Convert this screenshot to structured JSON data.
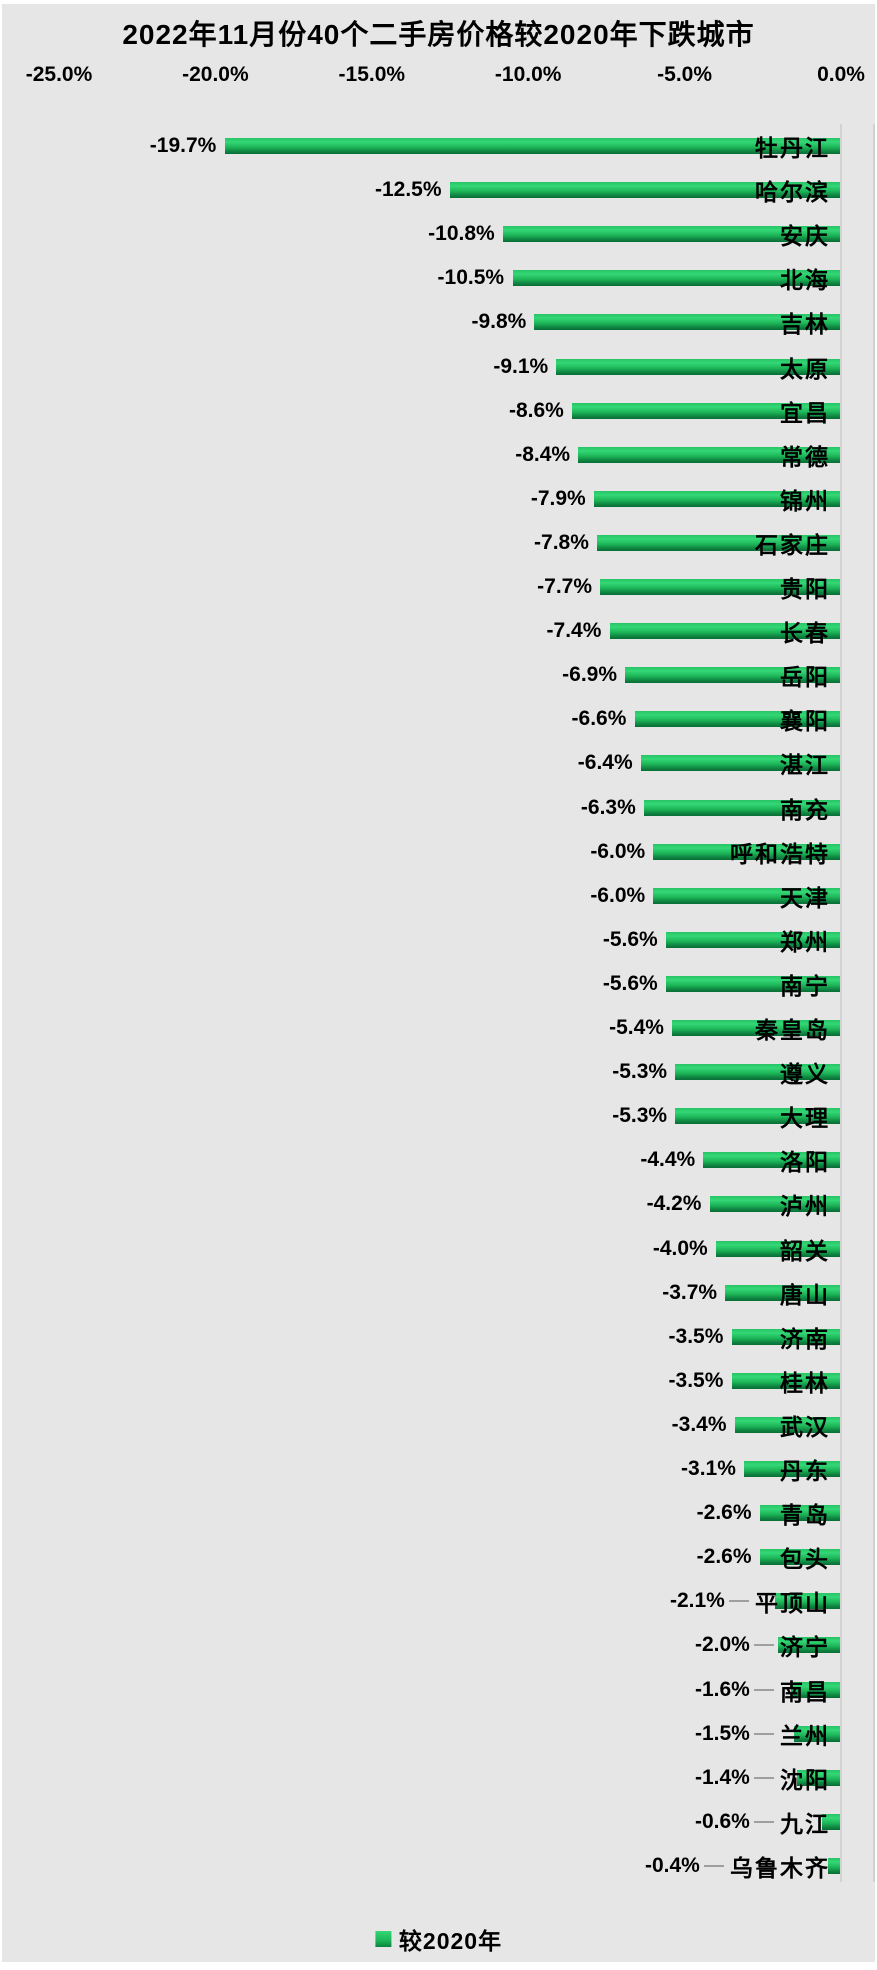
{
  "title": "2022年11月份40个二手房价格较2020年下跌城市",
  "legend": {
    "label": "较2020年"
  },
  "x_axis": {
    "ticks": [
      {
        "label": "-25.0%",
        "value": -25
      },
      {
        "label": "-20.0%",
        "value": -20
      },
      {
        "label": "-15.0%",
        "value": -15
      },
      {
        "label": "-10.0%",
        "value": -10
      },
      {
        "label": "-5.0%",
        "value": -5
      },
      {
        "label": "0.0%",
        "value": 0
      }
    ]
  },
  "chart_data": {
    "type": "bar",
    "orientation": "horizontal",
    "title": "2022年11月份40个二手房价格较2020年下跌城市",
    "xlabel": "",
    "ylabel": "",
    "xlim": [
      -25,
      0
    ],
    "grid": false,
    "legend_position": "bottom",
    "categories": [
      "牡丹江",
      "哈尔滨",
      "安庆",
      "北海",
      "吉林",
      "太原",
      "宜昌",
      "常德",
      "锦州",
      "石家庄",
      "贵阳",
      "长春",
      "岳阳",
      "襄阳",
      "湛江",
      "南充",
      "呼和浩特",
      "天津",
      "郑州",
      "南宁",
      "秦皇岛",
      "遵义",
      "大理",
      "洛阳",
      "泸州",
      "韶关",
      "唐山",
      "济南",
      "桂林",
      "武汉",
      "丹东",
      "青岛",
      "包头",
      "平顶山",
      "济宁",
      "南昌",
      "兰州",
      "沈阳",
      "九江",
      "乌鲁木齐"
    ],
    "series": [
      {
        "name": "较2020年",
        "values": [
          -19.7,
          -12.5,
          -10.8,
          -10.5,
          -9.8,
          -9.1,
          -8.6,
          -8.4,
          -7.9,
          -7.8,
          -7.7,
          -7.4,
          -6.9,
          -6.6,
          -6.4,
          -6.3,
          -6.0,
          -6.0,
          -5.6,
          -5.6,
          -5.4,
          -5.3,
          -5.3,
          -4.4,
          -4.2,
          -4.0,
          -3.7,
          -3.5,
          -3.5,
          -3.4,
          -3.1,
          -2.6,
          -2.6,
          -2.1,
          -2.0,
          -1.6,
          -1.5,
          -1.4,
          -0.6,
          -0.4
        ]
      }
    ],
    "value_labels": [
      "-19.7%",
      "-12.5%",
      "-10.8%",
      "-10.5%",
      "-9.8%",
      "-9.1%",
      "-8.6%",
      "-8.4%",
      "-7.9%",
      "-7.8%",
      "-7.7%",
      "-7.4%",
      "-6.9%",
      "-6.6%",
      "-6.4%",
      "-6.3%",
      "-6.0%",
      "-6.0%",
      "-5.6%",
      "-5.6%",
      "-5.4%",
      "-5.3%",
      "-5.3%",
      "-4.4%",
      "-4.2%",
      "-4.0%",
      "-3.7%",
      "-3.5%",
      "-3.5%",
      "-3.4%",
      "-3.1%",
      "-2.6%",
      "-2.6%",
      "-2.1%",
      "-2.0%",
      "-1.6%",
      "-1.5%",
      "-1.4%",
      "-0.6%",
      "-0.4%"
    ]
  },
  "colors": {
    "background": "#e6e6e6",
    "bar_gradient": [
      "#27c365",
      "#34d776",
      "#1cb457",
      "#0e8140",
      "#0a6e35"
    ],
    "axis_line": "#d2d2d2",
    "leader_line": "#9f9f9f",
    "text": "#000000"
  }
}
